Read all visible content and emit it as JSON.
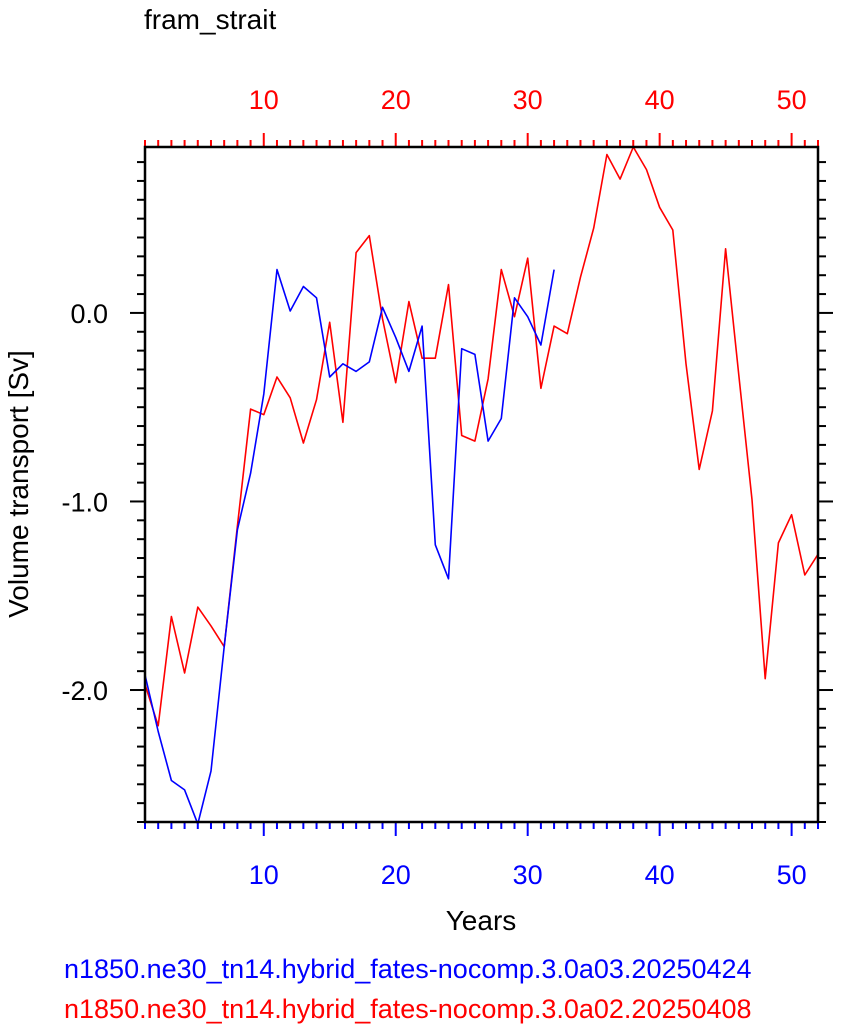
{
  "chart_data": {
    "type": "line",
    "title": "fram_strait",
    "xlabel": "Years",
    "ylabel": "Volume transport [Sv]",
    "xlim": [
      1,
      52
    ],
    "ylim": [
      -2.7,
      0.88
    ],
    "x_ticks": [
      10,
      20,
      30,
      40,
      50
    ],
    "x_tick_labels": [
      "10",
      "20",
      "30",
      "40",
      "50"
    ],
    "y_ticks": [
      -2.0,
      -1.0,
      0.0
    ],
    "y_tick_labels": [
      "-2.0",
      "-1.0",
      "0.0"
    ],
    "grid": false,
    "legend_placement": "bottom",
    "series": [
      {
        "name": "n1850.ne30_tn14.hybrid_fates-nocomp.3.0a03.20250424",
        "color": "#0000ff",
        "axis": "bottom",
        "x": [
          1,
          2,
          3,
          4,
          5,
          6,
          7,
          8,
          9,
          10,
          11,
          12,
          13,
          14,
          15,
          16,
          17,
          18,
          19,
          20,
          21,
          22,
          23,
          24,
          25,
          26,
          27,
          28,
          29,
          30,
          31,
          32
        ],
        "y": [
          -1.92,
          -2.22,
          -2.48,
          -2.53,
          -2.71,
          -2.43,
          -1.77,
          -1.15,
          -0.85,
          -0.43,
          0.23,
          0.01,
          0.14,
          0.08,
          -0.34,
          -0.27,
          -0.31,
          -0.26,
          0.03,
          -0.13,
          -0.31,
          -0.07,
          -1.23,
          -1.41,
          -0.19,
          -0.22,
          -0.68,
          -0.56,
          0.08,
          -0.02,
          -0.17,
          0.23
        ]
      },
      {
        "name": "n1850.ne30_tn14.hybrid_fates-nocomp.3.0a02.20250408",
        "color": "#ff0000",
        "axis": "top",
        "x": [
          1,
          2,
          3,
          4,
          5,
          6,
          7,
          8,
          9,
          10,
          11,
          12,
          13,
          14,
          15,
          16,
          17,
          18,
          19,
          20,
          21,
          22,
          23,
          24,
          25,
          26,
          27,
          28,
          29,
          30,
          31,
          32,
          33,
          34,
          35,
          36,
          37,
          38,
          39,
          40,
          41,
          42,
          43,
          44,
          45,
          46,
          47,
          48,
          49,
          50,
          51,
          52
        ],
        "y": [
          -1.97,
          -2.19,
          -1.61,
          -1.91,
          -1.56,
          -1.66,
          -1.77,
          -1.13,
          -0.51,
          -0.54,
          -0.34,
          -0.45,
          -0.69,
          -0.46,
          -0.05,
          -0.58,
          0.32,
          0.41,
          -0.03,
          -0.37,
          0.06,
          -0.24,
          -0.24,
          0.15,
          -0.65,
          -0.68,
          -0.35,
          0.23,
          -0.02,
          0.29,
          -0.4,
          -0.07,
          -0.11,
          0.19,
          0.45,
          0.84,
          0.71,
          0.88,
          0.76,
          0.56,
          0.44,
          -0.27,
          -0.83,
          -0.52,
          0.34,
          -0.33,
          -0.99,
          -1.94,
          -1.22,
          -1.07,
          -1.39,
          -1.28
        ]
      }
    ]
  },
  "colors": {
    "blue": "#0000ff",
    "red": "#ff0000",
    "axis": "#000000"
  }
}
